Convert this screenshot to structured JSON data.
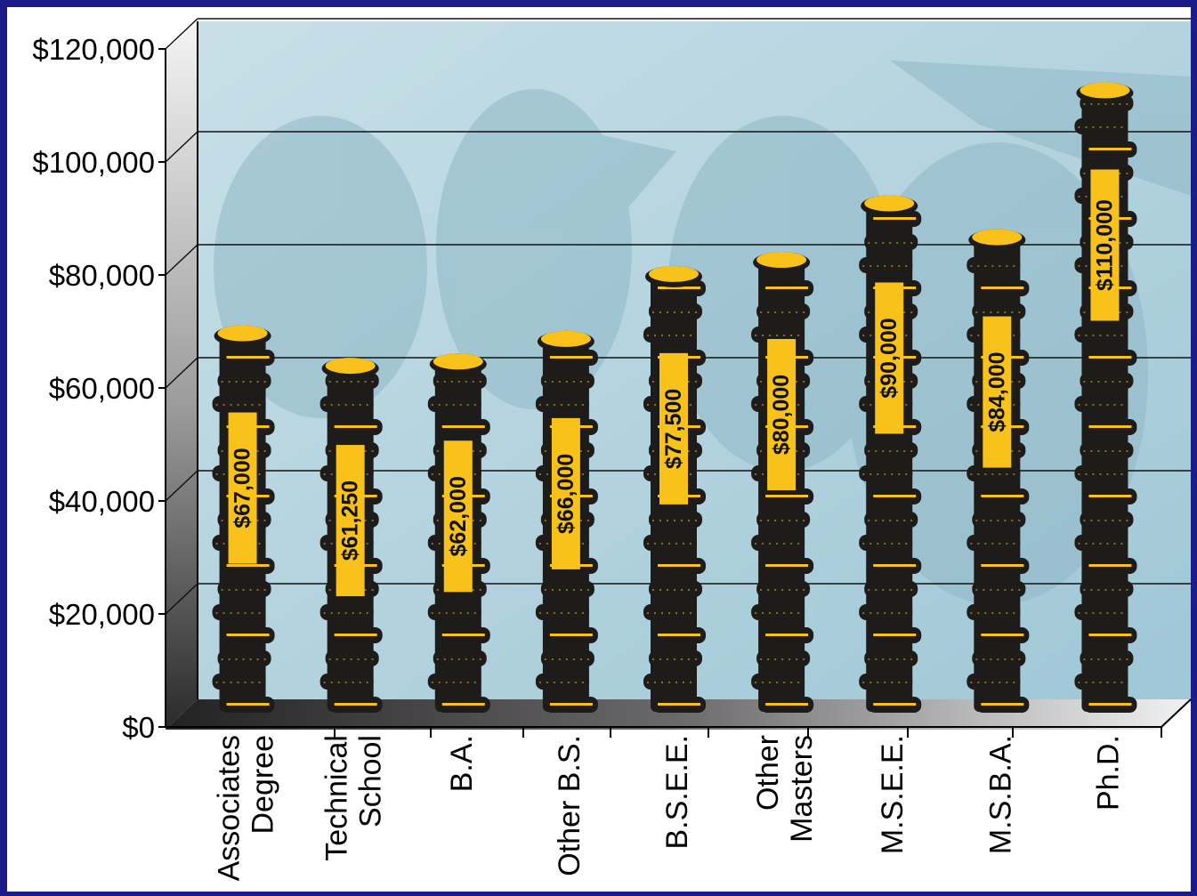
{
  "chart_data": {
    "type": "bar",
    "title": "",
    "xlabel": "",
    "ylabel": "",
    "ylim": [
      0,
      120000
    ],
    "y_ticks": [
      "$0",
      "$20,000",
      "$40,000",
      "$60,000",
      "$80,000",
      "$100,000",
      "$120,000"
    ],
    "categories": [
      [
        "Associates",
        "Degree"
      ],
      [
        "Technical",
        "School"
      ],
      [
        "B.A."
      ],
      [
        "Other B.S."
      ],
      [
        "B.S.E.E."
      ],
      [
        "Other",
        "Masters"
      ],
      [
        "M.S.E.E."
      ],
      [
        "M.S.B.A."
      ],
      [
        "Ph.D."
      ]
    ],
    "values": [
      67000,
      61250,
      62000,
      66000,
      77500,
      80000,
      90000,
      84000,
      110000
    ],
    "value_labels": [
      "$67,000",
      "$61,250",
      "$62,000",
      "$66,000",
      "$77,500",
      "$80,000",
      "$90,000",
      "$84,000",
      "$110,000"
    ],
    "grid": true,
    "colors": {
      "frame": "#1c1c88",
      "plot_background": "#a9cfdc",
      "coin_dark": "#1e1c1a",
      "coin_gold": "#f8c21a",
      "gridline": "#111111"
    }
  }
}
